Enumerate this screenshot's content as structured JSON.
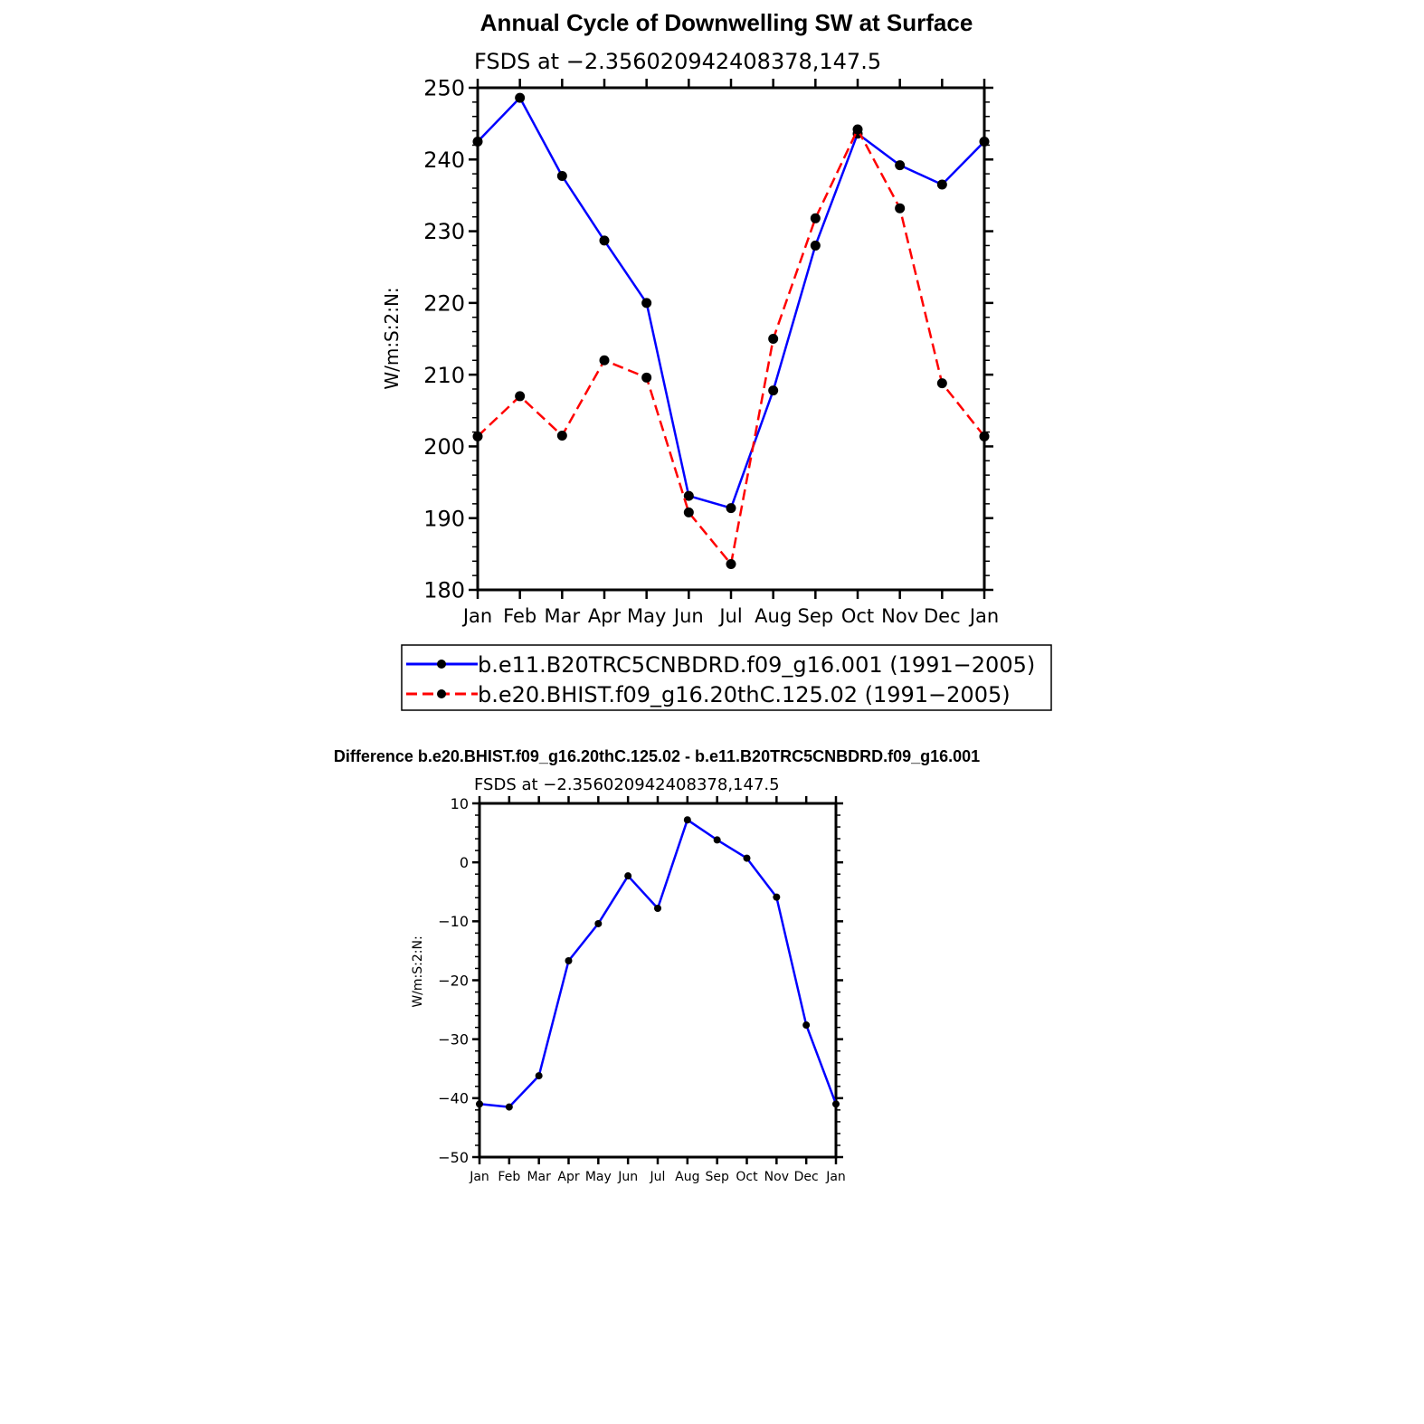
{
  "chart_data": [
    {
      "type": "line",
      "title": "Annual Cycle of Downwelling SW at Surface",
      "subtitle": "FSDS at −2.356020942408378,147.5",
      "xlabel": "",
      "ylabel": "W/m:S:2:N:",
      "categories": [
        "Jan",
        "Feb",
        "Mar",
        "Apr",
        "May",
        "Jun",
        "Jul",
        "Aug",
        "Sep",
        "Oct",
        "Nov",
        "Dec",
        "Jan"
      ],
      "ylim": [
        180,
        250
      ],
      "yticks": [
        180,
        190,
        200,
        210,
        220,
        230,
        240,
        250
      ],
      "series": [
        {
          "name": "b.e11.B20TRC5CNBDRD.f09_g16.001 (1991−2005)",
          "color": "#0000ff",
          "dash": "solid",
          "values": [
            242.5,
            248.6,
            237.7,
            228.7,
            220.0,
            193.1,
            191.4,
            207.8,
            228.0,
            243.6,
            239.2,
            236.5,
            242.5
          ]
        },
        {
          "name": "b.e20.BHIST.f09_g16.20thC.125.02 (1991−2005)",
          "color": "#ff0000",
          "dash": "dashed",
          "values": [
            201.4,
            207.0,
            201.5,
            212.0,
            209.6,
            190.8,
            183.6,
            215.0,
            231.8,
            244.2,
            233.2,
            208.8,
            201.4
          ]
        }
      ]
    },
    {
      "type": "line",
      "title": "Difference b.e20.BHIST.f09_g16.20thC.125.02 - b.e11.B20TRC5CNBDRD.f09_g16.001",
      "subtitle": "FSDS at −2.356020942408378,147.5",
      "xlabel": "",
      "ylabel": "W/m:S:2:N:",
      "categories": [
        "Jan",
        "Feb",
        "Mar",
        "Apr",
        "May",
        "Jun",
        "Jul",
        "Aug",
        "Sep",
        "Oct",
        "Nov",
        "Dec",
        "Jan"
      ],
      "ylim": [
        -50,
        10
      ],
      "yticks": [
        -50,
        -40,
        -30,
        -20,
        -10,
        0,
        10
      ],
      "ytick_labels": [
        "−50",
        "−40",
        "−30",
        "−20",
        "−10",
        "0",
        "10"
      ],
      "series": [
        {
          "name": "difference",
          "color": "#0000ff",
          "dash": "solid",
          "values": [
            -41.0,
            -41.5,
            -36.2,
            -16.7,
            -10.4,
            -2.3,
            -7.8,
            7.2,
            3.8,
            0.7,
            -5.9,
            -27.6,
            -41.0
          ]
        }
      ]
    }
  ]
}
